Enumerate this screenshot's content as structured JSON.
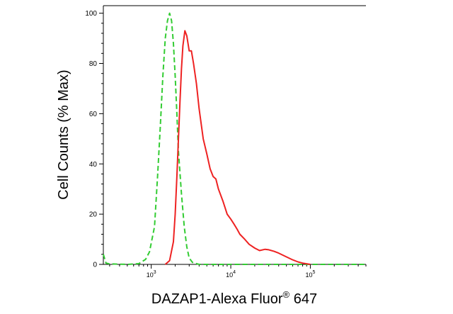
{
  "chart_data": {
    "type": "line",
    "title": "",
    "xlabel": "DAZAP1-Alexa Fluor",
    "xlabel_superscript": "®",
    "xlabel_suffix": " 647",
    "ylabel": "Cell Counts (% Max)",
    "x_scale": "log",
    "xlim": [
      250,
      500000
    ],
    "ylim": [
      0,
      103
    ],
    "y_ticks": [
      0,
      20,
      40,
      60,
      80,
      100
    ],
    "x_ticks": [
      {
        "value": 1000,
        "base": "10",
        "exp": "3"
      },
      {
        "value": 10000,
        "base": "10",
        "exp": "4"
      },
      {
        "value": 100000,
        "base": "10",
        "exp": "5"
      }
    ],
    "grid": false,
    "legend": "none",
    "series": [
      {
        "color": "#33cc33",
        "style": "dashed",
        "points": [
          [
            250,
            4.0
          ],
          [
            270,
            0.5
          ],
          [
            300,
            0.2
          ],
          [
            500,
            0
          ],
          [
            700,
            0.3
          ],
          [
            850,
            2
          ],
          [
            950,
            5
          ],
          [
            1100,
            15
          ],
          [
            1200,
            35
          ],
          [
            1300,
            55
          ],
          [
            1400,
            75
          ],
          [
            1500,
            90
          ],
          [
            1600,
            97
          ],
          [
            1700,
            100
          ],
          [
            1800,
            97
          ],
          [
            1900,
            88
          ],
          [
            2000,
            75
          ],
          [
            2100,
            60
          ],
          [
            2200,
            45
          ],
          [
            2400,
            28
          ],
          [
            2600,
            15
          ],
          [
            2800,
            7
          ],
          [
            3000,
            2.5
          ],
          [
            3300,
            0.8
          ],
          [
            4000,
            0
          ],
          [
            500000,
            0
          ]
        ]
      },
      {
        "color": "#ee2222",
        "style": "solid",
        "points": [
          [
            1500,
            0
          ],
          [
            1700,
            1.5
          ],
          [
            1900,
            9
          ],
          [
            2000,
            20
          ],
          [
            2100,
            35
          ],
          [
            2200,
            50
          ],
          [
            2300,
            65
          ],
          [
            2400,
            78
          ],
          [
            2500,
            87
          ],
          [
            2650,
            93
          ],
          [
            2800,
            91
          ],
          [
            3000,
            85
          ],
          [
            3200,
            85
          ],
          [
            3400,
            80
          ],
          [
            3700,
            72
          ],
          [
            4000,
            62
          ],
          [
            4500,
            50
          ],
          [
            5000,
            44
          ],
          [
            5500,
            38
          ],
          [
            6000,
            35
          ],
          [
            6500,
            34
          ],
          [
            7000,
            30
          ],
          [
            8000,
            25
          ],
          [
            9000,
            20
          ],
          [
            10000,
            18
          ],
          [
            11000,
            16
          ],
          [
            12000,
            14
          ],
          [
            13000,
            12
          ],
          [
            15000,
            10
          ],
          [
            17000,
            8
          ],
          [
            20000,
            6.5
          ],
          [
            23000,
            5.5
          ],
          [
            27000,
            6
          ],
          [
            30000,
            5.8
          ],
          [
            35000,
            5.2
          ],
          [
            40000,
            4.5
          ],
          [
            50000,
            3
          ],
          [
            60000,
            1.8
          ],
          [
            70000,
            1
          ],
          [
            80000,
            0.5
          ],
          [
            100000,
            0
          ]
        ]
      }
    ]
  }
}
